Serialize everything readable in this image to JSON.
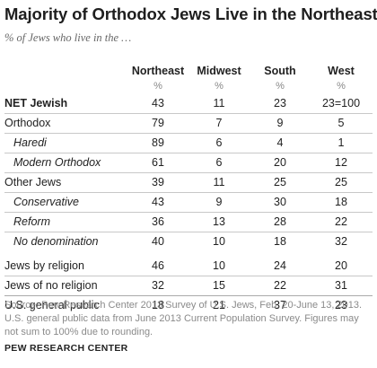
{
  "title": "Majority of Orthodox Jews Live in the Northeast",
  "subtitle": "% of Jews who live in the …",
  "source": "Source: Pew Research Center 2013 Survey of U.S. Jews, Feb. 20-June 13, 2013. U.S. general public data from June 2013 Current Population Survey. Figures may not sum to 100% due to rounding.",
  "credit": "PEW RESEARCH CENTER",
  "chart_data": {
    "type": "table",
    "columns": [
      "Northeast",
      "Midwest",
      "South",
      "West"
    ],
    "unit": "%",
    "rows": [
      {
        "label": "NET Jewish",
        "values": [
          "43",
          "11",
          "23",
          "23=100"
        ],
        "style": "bold"
      },
      {
        "label": "Orthodox",
        "values": [
          "79",
          "7",
          "9",
          "5"
        ],
        "style": "normal"
      },
      {
        "label": "Haredi",
        "values": [
          "89",
          "6",
          "4",
          "1"
        ],
        "style": "sub"
      },
      {
        "label": "Modern Orthodox",
        "values": [
          "61",
          "6",
          "20",
          "12"
        ],
        "style": "sub"
      },
      {
        "label": "Other Jews",
        "values": [
          "39",
          "11",
          "25",
          "25"
        ],
        "style": "normal"
      },
      {
        "label": "Conservative",
        "values": [
          "43",
          "9",
          "30",
          "18"
        ],
        "style": "sub"
      },
      {
        "label": "Reform",
        "values": [
          "36",
          "13",
          "28",
          "22"
        ],
        "style": "sub"
      },
      {
        "label": "No denomination",
        "values": [
          "40",
          "10",
          "18",
          "32"
        ],
        "style": "sub"
      },
      {
        "label": "Jews by religion",
        "values": [
          "46",
          "10",
          "24",
          "20"
        ],
        "style": "normal"
      },
      {
        "label": "Jews of no religion",
        "values": [
          "32",
          "15",
          "22",
          "31"
        ],
        "style": "normal"
      },
      {
        "label": "U.S. general public",
        "values": [
          "18",
          "21",
          "37",
          "23"
        ],
        "style": "normal"
      }
    ]
  }
}
